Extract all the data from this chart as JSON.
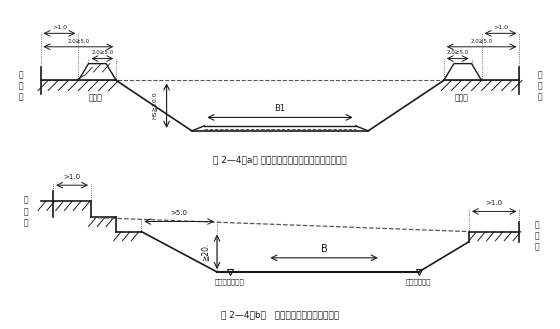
{
  "fig_width": 5.6,
  "fig_height": 3.29,
  "dpi": 100,
  "bg_color": "#ffffff",
  "line_color": "#1a1a1a",
  "dashed_color": "#555555",
  "caption_a": "图 2—4（a） 聃性土有弃土堆路基标准设计断面图",
  "caption_b": "图 2—4（b）   无弃土堆路基标准设计断面",
  "label_yudi_left": "用\n地\n界",
  "label_yudi_right": "用\n地\n界",
  "label_qitu": "弃土堆",
  "label_B1": "B1",
  "label_HS": "HS≧20.0",
  "dim_gt1": ">1.0",
  "dim_2_5": "2.0≥5.0",
  "dim_gt5": ">5.0",
  "dim_20": "≧20.",
  "label_B2": "B",
  "label_zongduan": "纵断面路肩标高",
  "label_lujian": "路肩设计标高"
}
